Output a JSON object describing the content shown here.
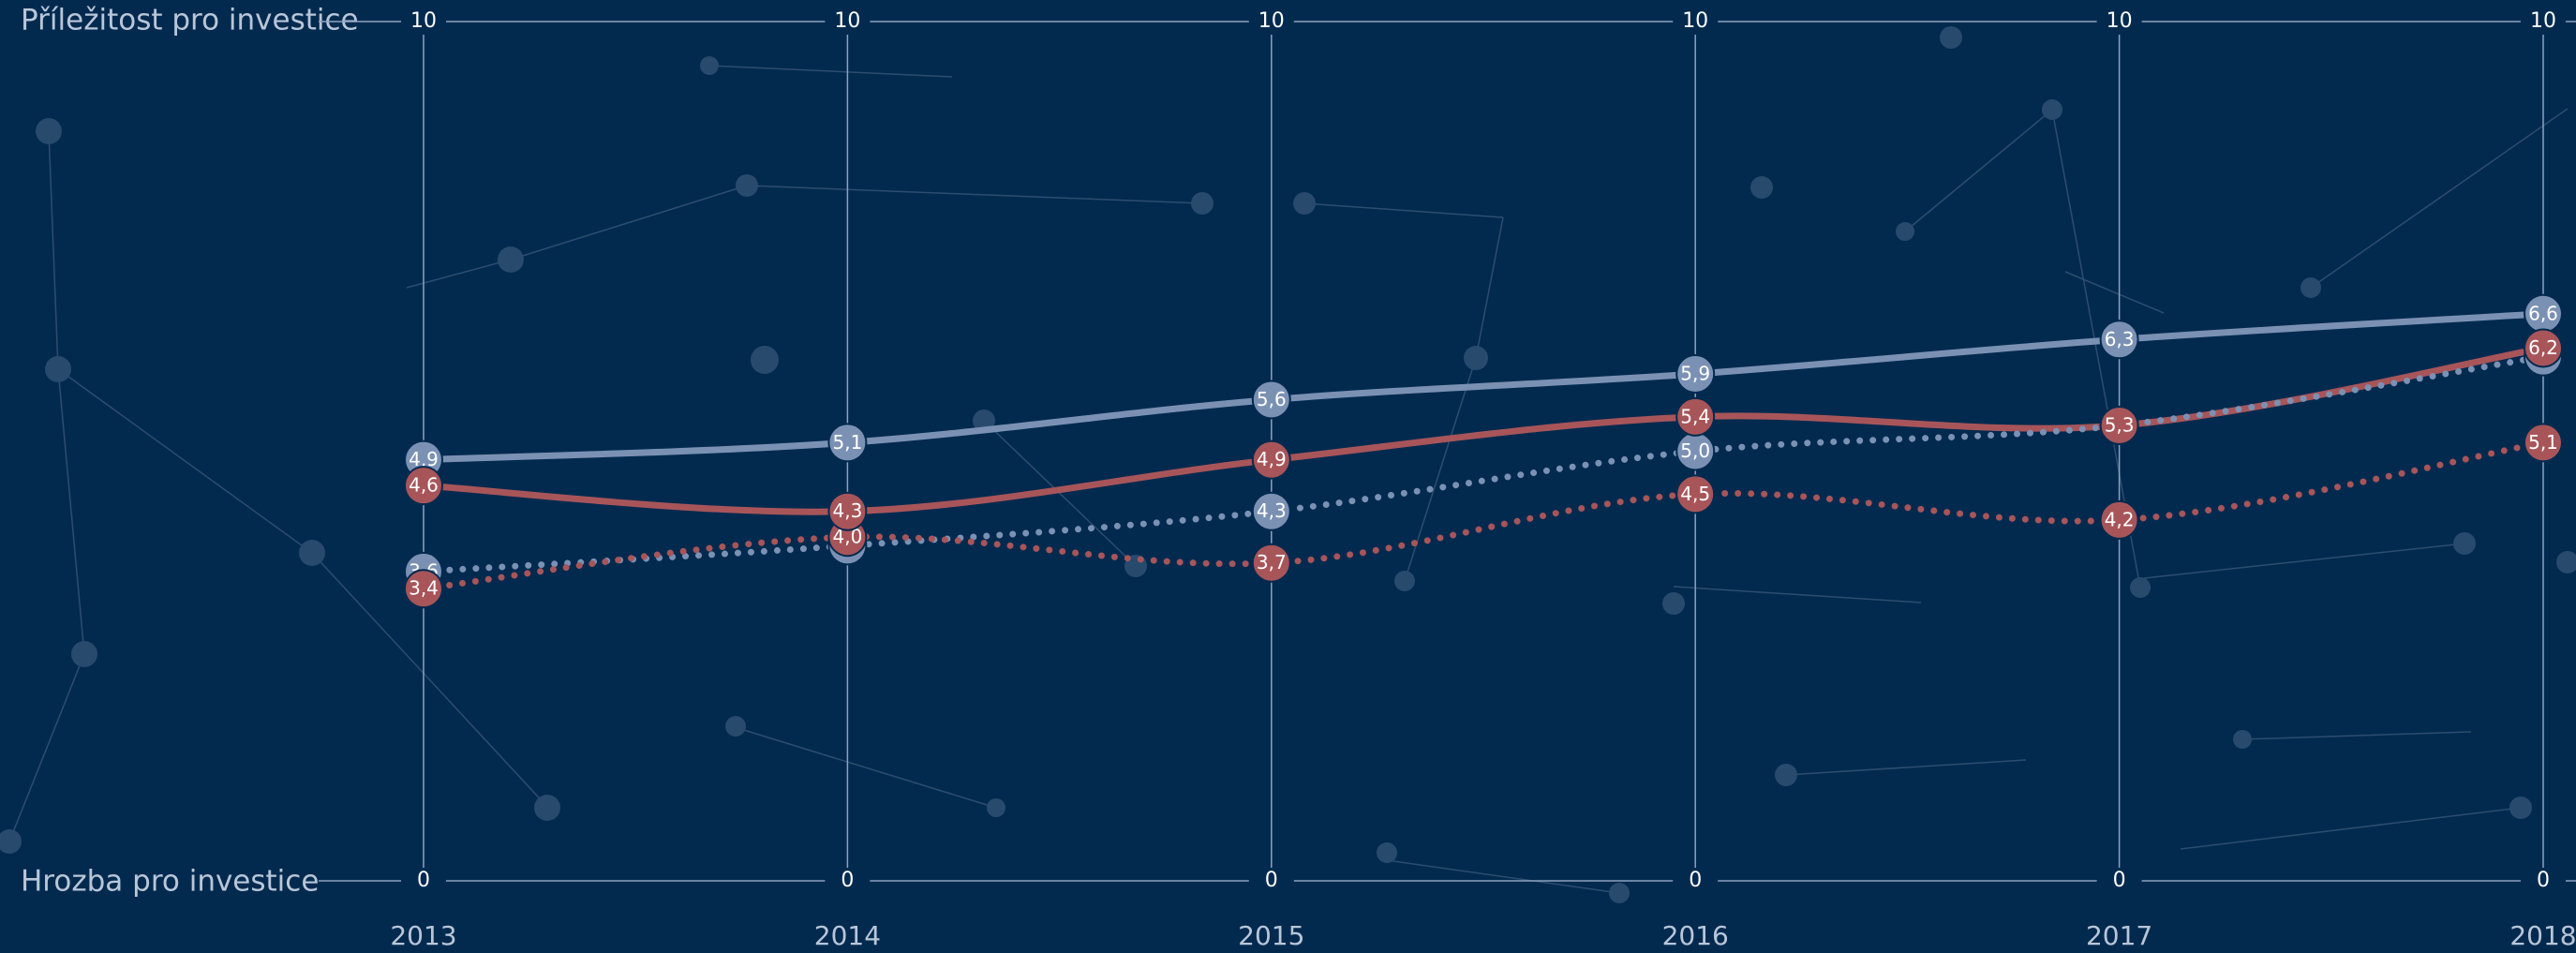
{
  "chart_data": {
    "type": "line",
    "ylabel_top": "Příležitost pro investice",
    "ylabel_bottom": "Hrozba pro investice",
    "categories": [
      "2013",
      "2014",
      "2015",
      "2016",
      "2017",
      "2018"
    ],
    "ylim": [
      0,
      10
    ],
    "yticks": [
      0,
      10
    ],
    "series": [
      {
        "color": "#7b91b4",
        "style": "solid",
        "values": [
          4.9,
          5.1,
          5.6,
          5.9,
          6.3,
          6.6
        ],
        "value_labels": [
          "4,9",
          "5,1",
          "5,6",
          "5,9",
          "6,3",
          "6,6"
        ]
      },
      {
        "color": "#a85559",
        "style": "solid",
        "values": [
          4.6,
          4.3,
          4.9,
          5.4,
          5.3,
          6.2
        ],
        "value_labels": [
          "4,6",
          "4,3",
          "4,9",
          "5,4",
          "5,3",
          "6,2"
        ]
      },
      {
        "color": "#7b91b4",
        "style": "dotted",
        "values": [
          3.6,
          3.9,
          4.3,
          5.0,
          5.3,
          6.1
        ],
        "value_labels": [
          "3,6",
          "3,9",
          "4,3",
          "5,0",
          null,
          "6,1"
        ]
      },
      {
        "color": "#a85559",
        "style": "dotted",
        "values": [
          3.4,
          4.0,
          3.7,
          4.5,
          4.2,
          5.1
        ],
        "value_labels": [
          "3,4",
          "4,0",
          "3,7",
          "4,5",
          "4,2",
          "5,1"
        ]
      }
    ]
  }
}
